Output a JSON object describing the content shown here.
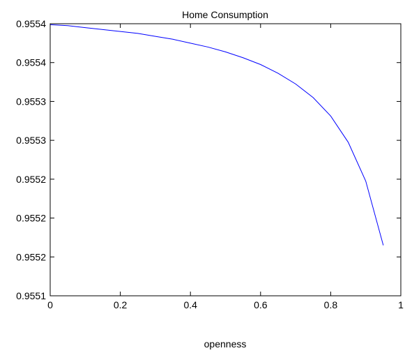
{
  "chart_data": {
    "type": "line",
    "title": "Home Consumption",
    "xlabel": "openness",
    "ylabel": "",
    "xlim": [
      0,
      1
    ],
    "ylim": [
      0.95511,
      0.95539
    ],
    "x_ticks": [
      {
        "value": 0,
        "label": "0"
      },
      {
        "value": 0.2,
        "label": "0.2"
      },
      {
        "value": 0.4,
        "label": "0.4"
      },
      {
        "value": 0.6,
        "label": "0.6"
      },
      {
        "value": 0.8,
        "label": "0.8"
      },
      {
        "value": 1,
        "label": "1"
      }
    ],
    "y_ticks": [
      {
        "value": 0.95511,
        "label": "0.9551"
      },
      {
        "value": 0.95515,
        "label": "0.9552"
      },
      {
        "value": 0.95519,
        "label": "0.9552"
      },
      {
        "value": 0.95523,
        "label": "0.9552"
      },
      {
        "value": 0.95527,
        "label": "0.9553"
      },
      {
        "value": 0.95531,
        "label": "0.9553"
      },
      {
        "value": 0.95535,
        "label": "0.9554"
      },
      {
        "value": 0.95539,
        "label": "0.9554"
      }
    ],
    "grid": false,
    "series": [
      {
        "color": "#0000ff",
        "x": [
          0,
          0.05,
          0.1,
          0.15,
          0.2,
          0.25,
          0.3,
          0.35,
          0.4,
          0.45,
          0.5,
          0.55,
          0.6,
          0.65,
          0.7,
          0.75,
          0.8,
          0.85,
          0.9,
          0.95
        ],
        "y": [
          0.955389,
          0.955388,
          0.955386,
          0.955384,
          0.955382,
          0.95538,
          0.955377,
          0.955374,
          0.95537,
          0.955366,
          0.955361,
          0.955355,
          0.955348,
          0.955339,
          0.955328,
          0.955314,
          0.955295,
          0.955268,
          0.955228,
          0.955162
        ]
      }
    ]
  }
}
